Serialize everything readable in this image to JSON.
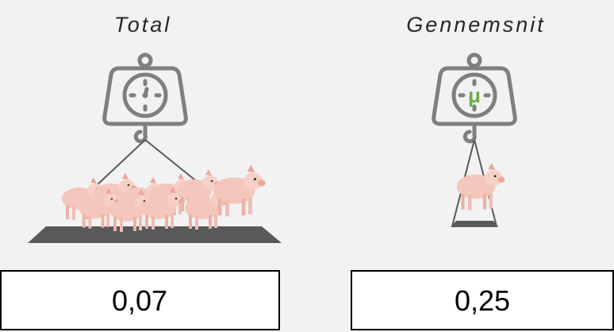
{
  "panels": [
    {
      "title": "Total",
      "value": "0,07"
    },
    {
      "title": "Gennemsnit",
      "symbol": "μ",
      "value": "0,25"
    }
  ]
}
